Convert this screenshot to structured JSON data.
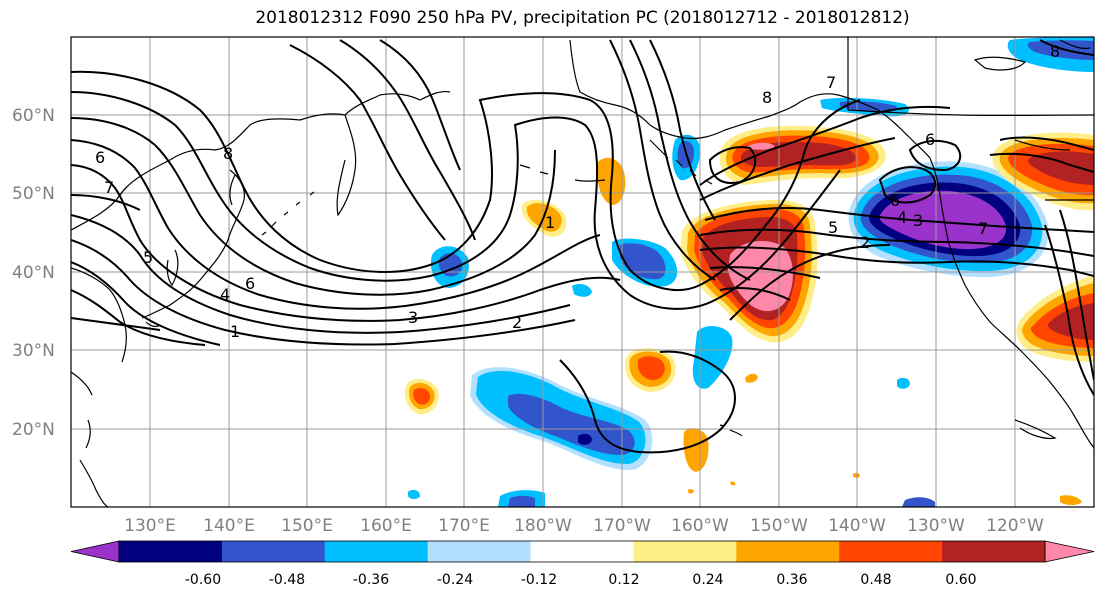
{
  "title": "2018012312 F090 250 hPa PV, precipitation PC (2018012712 - 2018012812)",
  "map": {
    "latitude_labels": [
      "60°N",
      "50°N",
      "40°N",
      "30°N",
      "20°N"
    ],
    "longitude_labels": [
      "130°E",
      "140°E",
      "150°E",
      "160°E",
      "170°E",
      "180°W",
      "170°W",
      "160°W",
      "150°W",
      "140°W",
      "130°W",
      "120°W"
    ],
    "contour_labels": [
      "6",
      "7",
      "8",
      "6",
      "5",
      "4",
      "1",
      "3",
      "2",
      "1",
      "8",
      "7",
      "6",
      "5",
      "2",
      "4",
      "3",
      "6",
      "7",
      "8"
    ]
  },
  "colorbar": {
    "tick_labels": [
      "-0.60",
      "-0.48",
      "-0.36",
      "-0.24",
      "-0.12",
      "0.12",
      "0.24",
      "0.36",
      "0.48",
      "0.60"
    ],
    "colors": [
      "#9933cc",
      "#000080",
      "#3355cc",
      "#00bfff",
      "#b3e0ff",
      "#ffffff",
      "#ffee88",
      "#ffa500",
      "#ff4500",
      "#b22222",
      "#ff88aa"
    ]
  }
}
